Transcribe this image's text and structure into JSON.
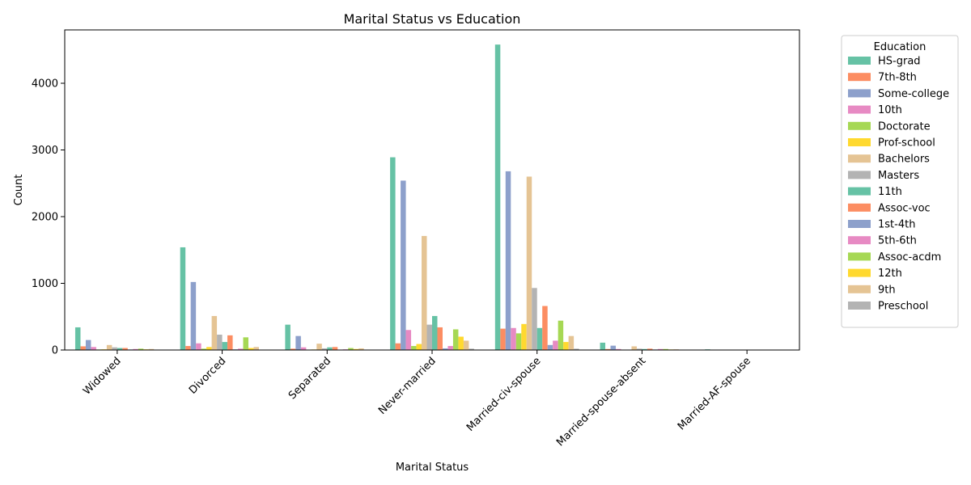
{
  "chart_data": {
    "type": "bar",
    "title": "Marital Status vs Education",
    "xlabel": "Marital Status",
    "ylabel": "Count",
    "ylim": [
      0,
      4800
    ],
    "yticks": [
      0,
      1000,
      2000,
      3000,
      4000
    ],
    "grid": false,
    "legend": {
      "title": "Education",
      "placement": "outside-right"
    },
    "categories": [
      "Widowed",
      "Divorced",
      "Separated",
      "Never-married",
      "Married-civ-spouse",
      "Married-spouse-absent",
      "Married-AF-spouse"
    ],
    "series": [
      {
        "name": "HS-grad",
        "color": "#66c2a5",
        "values": [
          340,
          1540,
          380,
          2890,
          4580,
          110,
          10
        ]
      },
      {
        "name": "7th-8th",
        "color": "#fc8d62",
        "values": [
          55,
          60,
          20,
          100,
          320,
          15,
          0
        ]
      },
      {
        "name": "Some-college",
        "color": "#8da0cb",
        "values": [
          150,
          1020,
          210,
          2540,
          2680,
          65,
          5
        ]
      },
      {
        "name": "10th",
        "color": "#e78ac3",
        "values": [
          45,
          100,
          40,
          300,
          330,
          15,
          0
        ]
      },
      {
        "name": "Doctorate",
        "color": "#a6d854",
        "values": [
          8,
          20,
          5,
          60,
          250,
          5,
          0
        ]
      },
      {
        "name": "Prof-school",
        "color": "#ffd92f",
        "values": [
          10,
          45,
          8,
          90,
          390,
          5,
          0
        ]
      },
      {
        "name": "Bachelors",
        "color": "#e5c494",
        "values": [
          75,
          510,
          95,
          1710,
          2600,
          55,
          2
        ]
      },
      {
        "name": "Masters",
        "color": "#b3b3b3",
        "values": [
          40,
          230,
          25,
          380,
          930,
          20,
          2
        ]
      },
      {
        "name": "11th",
        "color": "#66c2a5",
        "values": [
          30,
          120,
          40,
          510,
          330,
          15,
          0
        ]
      },
      {
        "name": "Assoc-voc",
        "color": "#fc8d62",
        "values": [
          30,
          220,
          45,
          340,
          660,
          20,
          0
        ]
      },
      {
        "name": "1st-4th",
        "color": "#8da0cb",
        "values": [
          8,
          10,
          5,
          25,
          75,
          8,
          0
        ]
      },
      {
        "name": "5th-6th",
        "color": "#e78ac3",
        "values": [
          15,
          20,
          10,
          60,
          140,
          15,
          0
        ]
      },
      {
        "name": "Assoc-acdm",
        "color": "#a6d854",
        "values": [
          20,
          190,
          30,
          310,
          440,
          15,
          0
        ]
      },
      {
        "name": "12th",
        "color": "#ffd92f",
        "values": [
          10,
          30,
          15,
          200,
          120,
          8,
          0
        ]
      },
      {
        "name": "9th",
        "color": "#e5c494",
        "values": [
          15,
          45,
          25,
          140,
          210,
          10,
          0
        ]
      },
      {
        "name": "Preschool",
        "color": "#b3b3b3",
        "values": [
          3,
          5,
          3,
          20,
          20,
          2,
          0
        ]
      }
    ]
  }
}
